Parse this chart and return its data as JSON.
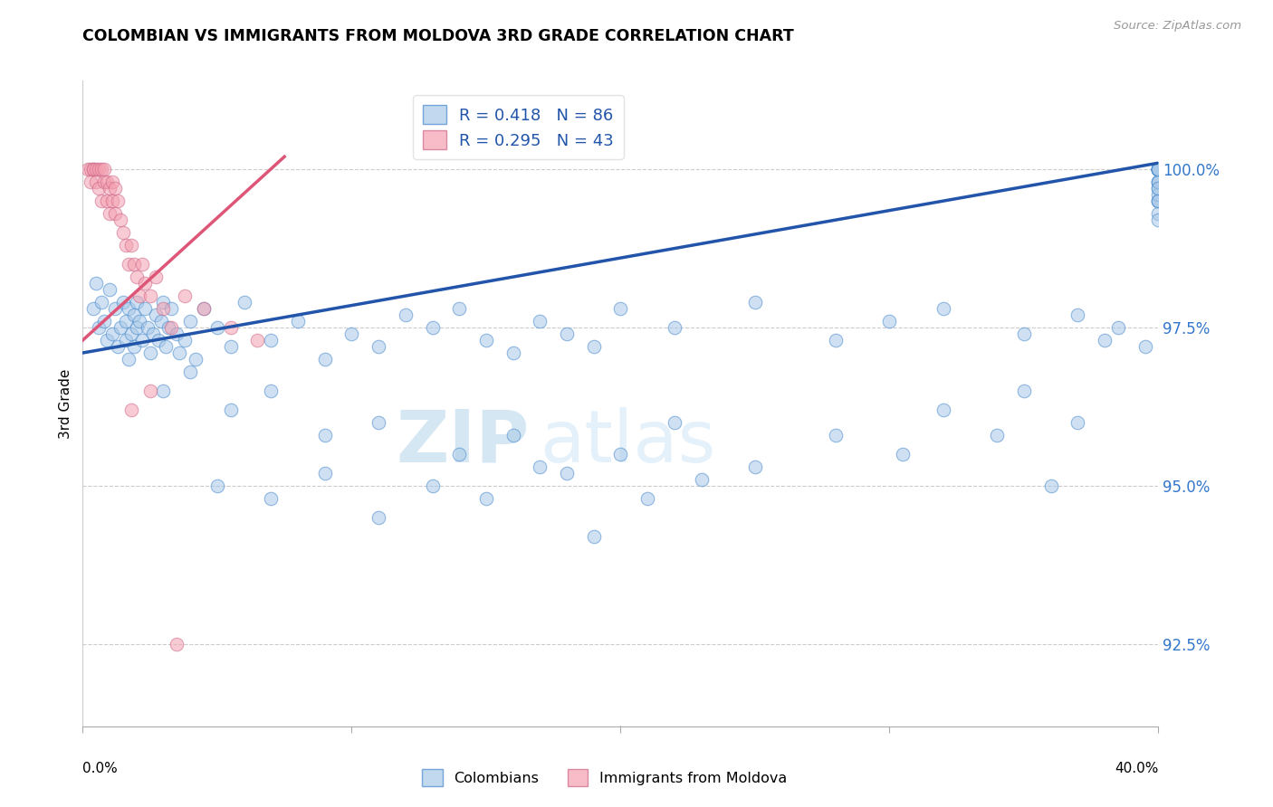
{
  "title": "COLOMBIAN VS IMMIGRANTS FROM MOLDOVA 3RD GRADE CORRELATION CHART",
  "source": "Source: ZipAtlas.com",
  "ylabel": "3rd Grade",
  "xlim": [
    0.0,
    40.0
  ],
  "ylim": [
    91.2,
    101.4
  ],
  "yticks": [
    92.5,
    95.0,
    97.5,
    100.0
  ],
  "ytick_labels": [
    "92.5%",
    "95.0%",
    "97.5%",
    "100.0%"
  ],
  "blue_color": "#a8c8e8",
  "blue_edge_color": "#4488cc",
  "pink_color": "#f4a0b0",
  "pink_edge_color": "#cc6688",
  "blue_line_color": "#2255aa",
  "pink_line_color": "#dd5577",
  "legend_label_blue": "Colombians",
  "legend_label_pink": "Immigrants from Moldova",
  "blue_line_x": [
    0.0,
    40.0
  ],
  "blue_line_y": [
    97.1,
    100.1
  ],
  "pink_line_x": [
    0.0,
    7.5
  ],
  "pink_line_y": [
    97.3,
    100.2
  ],
  "blue_scatter_x": [
    0.4,
    0.5,
    0.6,
    0.7,
    0.8,
    0.9,
    1.0,
    1.1,
    1.2,
    1.3,
    1.4,
    1.5,
    1.6,
    1.6,
    1.7,
    1.7,
    1.8,
    1.9,
    1.9,
    2.0,
    2.0,
    2.1,
    2.2,
    2.3,
    2.4,
    2.5,
    2.6,
    2.7,
    2.8,
    2.9,
    3.0,
    3.1,
    3.2,
    3.3,
    3.5,
    3.6,
    3.8,
    4.0,
    4.2,
    4.5,
    5.0,
    5.5,
    6.0,
    7.0,
    8.0,
    9.0,
    10.0,
    11.0,
    12.0,
    13.0,
    14.0,
    15.0,
    16.0,
    17.0,
    18.0,
    19.0,
    20.0,
    22.0,
    25.0,
    28.0,
    30.0,
    32.0,
    35.0,
    37.0,
    38.5,
    39.5,
    40.0,
    40.0,
    40.0,
    40.0,
    40.0,
    40.0,
    40.0,
    40.0,
    40.0,
    40.0,
    40.0,
    40.0,
    40.0,
    40.0,
    40.0,
    40.0,
    40.0,
    40.0,
    40.0,
    40.0
  ],
  "blue_scatter_y": [
    97.8,
    98.2,
    97.5,
    97.9,
    97.6,
    97.3,
    98.1,
    97.4,
    97.8,
    97.2,
    97.5,
    97.9,
    97.3,
    97.6,
    97.8,
    97.0,
    97.4,
    97.7,
    97.2,
    97.5,
    97.9,
    97.6,
    97.3,
    97.8,
    97.5,
    97.1,
    97.4,
    97.7,
    97.3,
    97.6,
    97.9,
    97.2,
    97.5,
    97.8,
    97.4,
    97.1,
    97.3,
    97.6,
    97.0,
    97.8,
    97.5,
    97.2,
    97.9,
    97.3,
    97.6,
    97.0,
    97.4,
    97.2,
    97.7,
    97.5,
    97.8,
    97.3,
    97.1,
    97.6,
    97.4,
    97.2,
    97.8,
    97.5,
    97.9,
    97.3,
    97.6,
    97.8,
    97.4,
    97.7,
    97.5,
    97.2,
    100.0,
    100.0,
    100.0,
    100.0,
    100.0,
    99.8,
    99.5,
    100.0,
    100.0,
    99.7,
    99.5,
    99.8,
    100.0,
    99.6,
    99.3,
    99.8,
    100.0,
    99.5,
    99.2,
    99.7
  ],
  "blue_scatter_x2": [
    3.0,
    4.0,
    5.5,
    7.0,
    9.0,
    11.0,
    14.0,
    16.0,
    18.0,
    20.0,
    22.0,
    25.0,
    28.0,
    30.5,
    32.0,
    34.0,
    35.0,
    36.0,
    37.0,
    38.0
  ],
  "blue_scatter_y2": [
    96.5,
    96.8,
    96.2,
    96.5,
    95.8,
    96.0,
    95.5,
    95.8,
    95.2,
    95.5,
    96.0,
    95.3,
    95.8,
    95.5,
    96.2,
    95.8,
    96.5,
    95.0,
    96.0,
    97.3
  ],
  "blue_scatter_x3": [
    5.0,
    7.0,
    9.0,
    11.0,
    13.0,
    15.0,
    17.0,
    19.0,
    21.0,
    23.0
  ],
  "blue_scatter_y3": [
    95.0,
    94.8,
    95.2,
    94.5,
    95.0,
    94.8,
    95.3,
    94.2,
    94.8,
    95.1
  ],
  "pink_scatter_x": [
    0.2,
    0.3,
    0.3,
    0.4,
    0.4,
    0.5,
    0.5,
    0.6,
    0.6,
    0.7,
    0.7,
    0.8,
    0.8,
    0.9,
    0.9,
    1.0,
    1.0,
    1.1,
    1.1,
    1.2,
    1.2,
    1.3,
    1.4,
    1.5,
    1.6,
    1.7,
    1.8,
    1.9,
    2.0,
    2.1,
    2.2,
    2.3,
    2.5,
    2.7,
    3.0,
    3.3,
    3.8,
    4.5,
    5.5,
    6.5,
    1.8,
    2.5,
    3.5
  ],
  "pink_scatter_y": [
    100.0,
    100.0,
    99.8,
    100.0,
    100.0,
    100.0,
    99.8,
    100.0,
    99.7,
    99.5,
    100.0,
    99.8,
    100.0,
    99.5,
    99.8,
    99.3,
    99.7,
    99.5,
    99.8,
    99.3,
    99.7,
    99.5,
    99.2,
    99.0,
    98.8,
    98.5,
    98.8,
    98.5,
    98.3,
    98.0,
    98.5,
    98.2,
    98.0,
    98.3,
    97.8,
    97.5,
    98.0,
    97.8,
    97.5,
    97.3,
    96.2,
    96.5,
    92.5
  ],
  "watermark_zip": "ZIP",
  "watermark_atlas": "atlas",
  "background_color": "#ffffff"
}
